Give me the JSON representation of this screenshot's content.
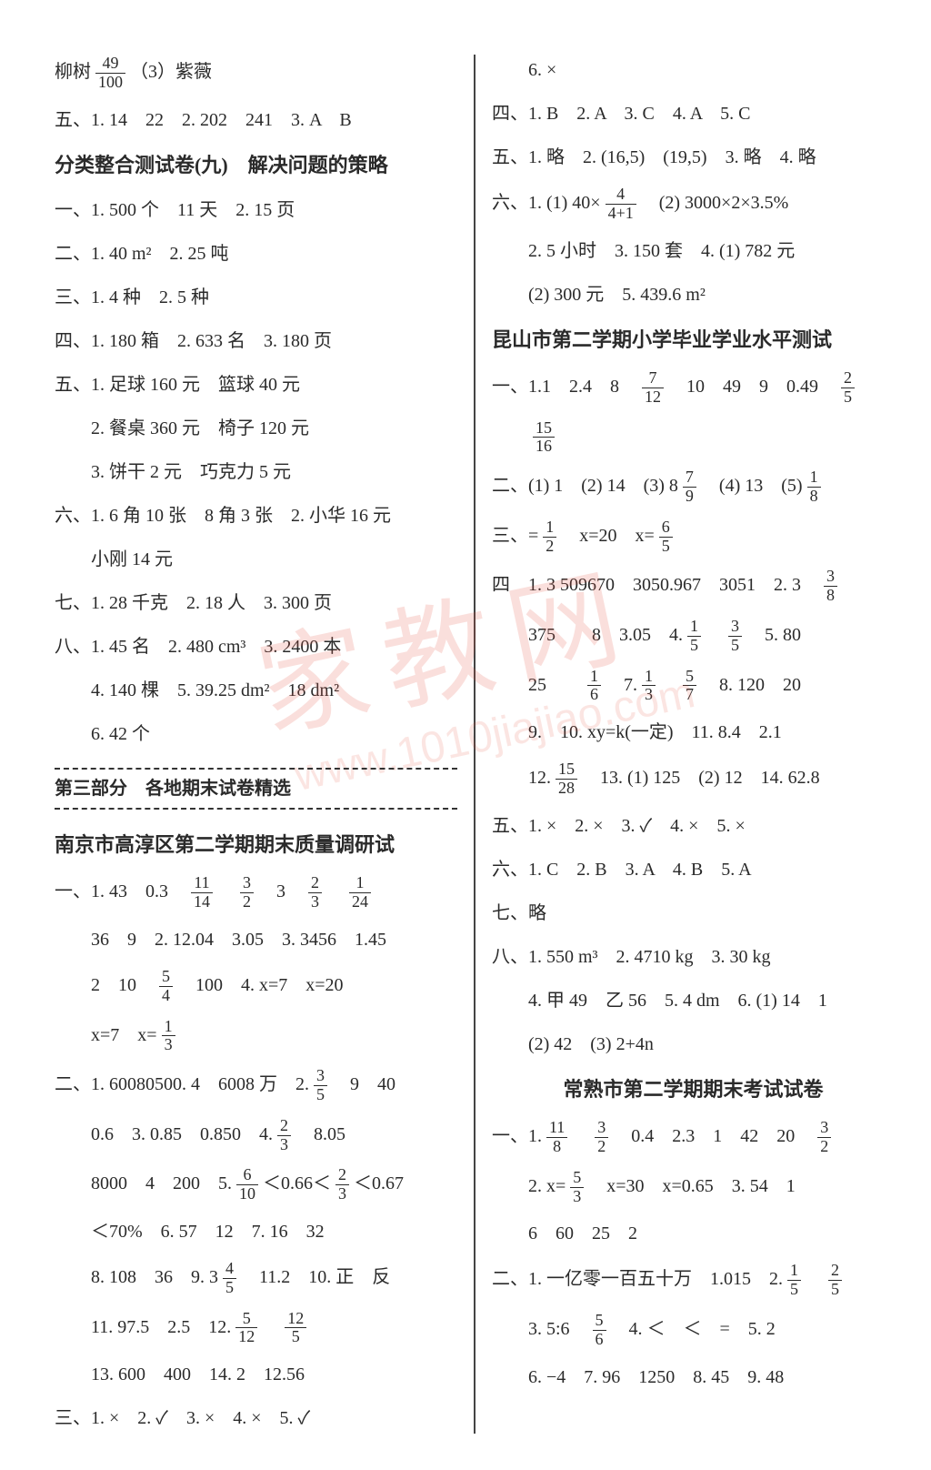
{
  "watermark_main": "家教网",
  "watermark_url": "www.1010jiajiao.com",
  "left": {
    "l1a": "柳树",
    "l1b": "（3）紫薇",
    "f1n": "49",
    "f1d": "100",
    "l2": "五、1. 14　22　2. 202　241　3. A　B",
    "sec1": "分类整合测试卷(九)　解决问题的策略",
    "l3": "一、1. 500 个　11 天　2. 15 页",
    "l4": "二、1. 40 m²　2. 25 吨",
    "l5": "三、1. 4 种　2. 5 种",
    "l6": "四、1. 180 箱　2. 633 名　3. 180 页",
    "l7": "五、1. 足球 160 元　篮球 40 元",
    "l8": "　　2. 餐桌 360 元　椅子 120 元",
    "l9": "　　3. 饼干 2 元　巧克力 5 元",
    "l10": "六、1. 6 角 10 张　8 角 3 张　2. 小华 16 元",
    "l11": "　　小刚 14 元",
    "l12": "七、1. 28 千克　2. 18 人　3. 300 页",
    "l13": "八、1. 45 名　2. 480 cm³　3. 2400 本",
    "l14": "　　4. 140 棵　5. 39.25 dm²　18 dm²",
    "l15": "　　6. 42 个",
    "banner": "第三部分　各地期末试卷精选",
    "sec2": "南京市高淳区第二学期期末质量调研试",
    "n1a": "一、1. 43　0.3　",
    "n1b": "　",
    "n1c": "　3　",
    "n1d": "　",
    "n1e": "　",
    "f2n": "11",
    "f2d": "14",
    "f3n": "3",
    "f3d": "2",
    "f4n": "2",
    "f4d": "3",
    "f5n": "1",
    "f5d": "24",
    "n2": "　　36　9　2. 12.04　3.05　3. 3456　1.45",
    "n3a": "　　2　10　",
    "n3b": "　100　4. x=7　x=20",
    "f6n": "5",
    "f6d": "4",
    "n4a": "　　x=7　x=",
    "f7n": "1",
    "f7d": "3",
    "n5a": "二、1. 60080500. 4　6008 万　2. ",
    "n5b": "　9　40",
    "f8n": "3",
    "f8d": "5",
    "n6a": "　　0.6　3. 0.85　0.850　4. ",
    "n6b": "　8.05",
    "f9n": "2",
    "f9d": "3",
    "n7a": "　　8000　4　200　5. ",
    "n7b": "＜0.66＜",
    "n7c": "＜0.67",
    "f10n": "6",
    "f10d": "10",
    "f11n": "2",
    "f11d": "3",
    "n8": "　　＜70%　6. 57　12　7. 16　32",
    "n9a": "　　8. 108　36　9. 3",
    "n9b": "　11.2　10. 正　反",
    "f12n": "4",
    "f12d": "5",
    "n10a": "　　11. 97.5　2.5　12. ",
    "n10b": "　",
    "f13n": "5",
    "f13d": "12",
    "f14n": "12",
    "f14d": "5",
    "n11": "　　13. 600　400　14. 2　12.56",
    "n12": "三、1. ×　2. ✓　3. ×　4. ×　5. ✓"
  },
  "right": {
    "r1": "　　6. ×",
    "r2": "四、1. B　2. A　3. C　4. A　5. C",
    "r3": "五、1. 略　2. (16,5)　(19,5)　3. 略　4. 略",
    "r4a": "六、1. (1) 40×",
    "r4b": "　(2) 3000×2×3.5%",
    "f20n": "4",
    "f20d": "4+1",
    "r5": "　　2. 5 小时　3. 150 套　4. (1) 782 元",
    "r6": "　　(2) 300 元　5. 439.6 m²",
    "sec3": "昆山市第二学期小学毕业学业水平测试",
    "r7a": "一、1.1　2.4　8　",
    "r7b": "　10　49　9　0.49　",
    "f21n": "7",
    "f21d": "12",
    "f22n": "2",
    "f22d": "5",
    "r8": "　　",
    "f23n": "15",
    "f23d": "16",
    "r9a": "二、(1) 1　(2) 14　(3) 8",
    "r9b": "　(4) 13　(5) ",
    "f24n": "7",
    "f24d": "9",
    "f25n": "1",
    "f25d": "8",
    "r10a": "三、=",
    "r10b": "　x=20　x=",
    "f26n": "1",
    "f26d": "2",
    "f27n": "6",
    "f27d": "5",
    "r11a": "四　1. 3 509670　3050.967　3051　2. 3　",
    "f28n": "3",
    "f28d": "8",
    "r12a": "　　375　　8　3.05　4. ",
    "r12b": "　",
    "r12c": "　5. 80",
    "f29n": "1",
    "f29d": "5",
    "f30n": "3",
    "f30d": "5",
    "r13a": "　　25　　",
    "r13b": "　7. ",
    "r13c": "　",
    "r13d": "　8. 120　20",
    "f31n": "1",
    "f31d": "6",
    "f32n": "1",
    "f32d": "3",
    "f33n": "5",
    "f33d": "7",
    "r14": "　　9.　10. xy=k(一定)　11. 8.4　2.1",
    "r15a": "　　12. ",
    "r15b": "　13. (1) 125　(2) 12　14. 62.8",
    "f34n": "15",
    "f34d": "28",
    "r16": "五、1. ×　2. ×　3. ✓　4. ×　5. ×",
    "r17": "六、1. C　2. B　3. A　4. B　5. A",
    "r18": "七、略",
    "r19": "八、1. 550 m³　2. 4710 kg　3. 30 kg",
    "r20": "　　4. 甲 49　乙 56　5. 4 dm　6. (1) 14　1",
    "r21": "　　(2) 42　(3) 2+4n",
    "sec4": "常熟市第二学期期末考试试卷",
    "r22a": "一、1. ",
    "r22b": "　",
    "r22c": "　0.4　2.3　1　42　20　",
    "f35n": "11",
    "f35d": "8",
    "f36n": "3",
    "f36d": "2",
    "f37n": "3",
    "f37d": "2",
    "r23a": "　　2. x=",
    "r23b": "　x=30　x=0.65　3. 54　1",
    "f38n": "5",
    "f38d": "3",
    "r24": "　　6　60　25　2",
    "r25a": "二、1. 一亿零一百五十万　1.015　2. ",
    "r25b": "　",
    "f39n": "1",
    "f39d": "5",
    "f40n": "2",
    "f40d": "5",
    "r26a": "　　3. 5:6　",
    "r26b": "　4. ＜　＜　=　5. 2",
    "f41n": "5",
    "f41d": "6",
    "r27": "　　6. −4　7. 96　1250　8. 45　9. 48"
  }
}
